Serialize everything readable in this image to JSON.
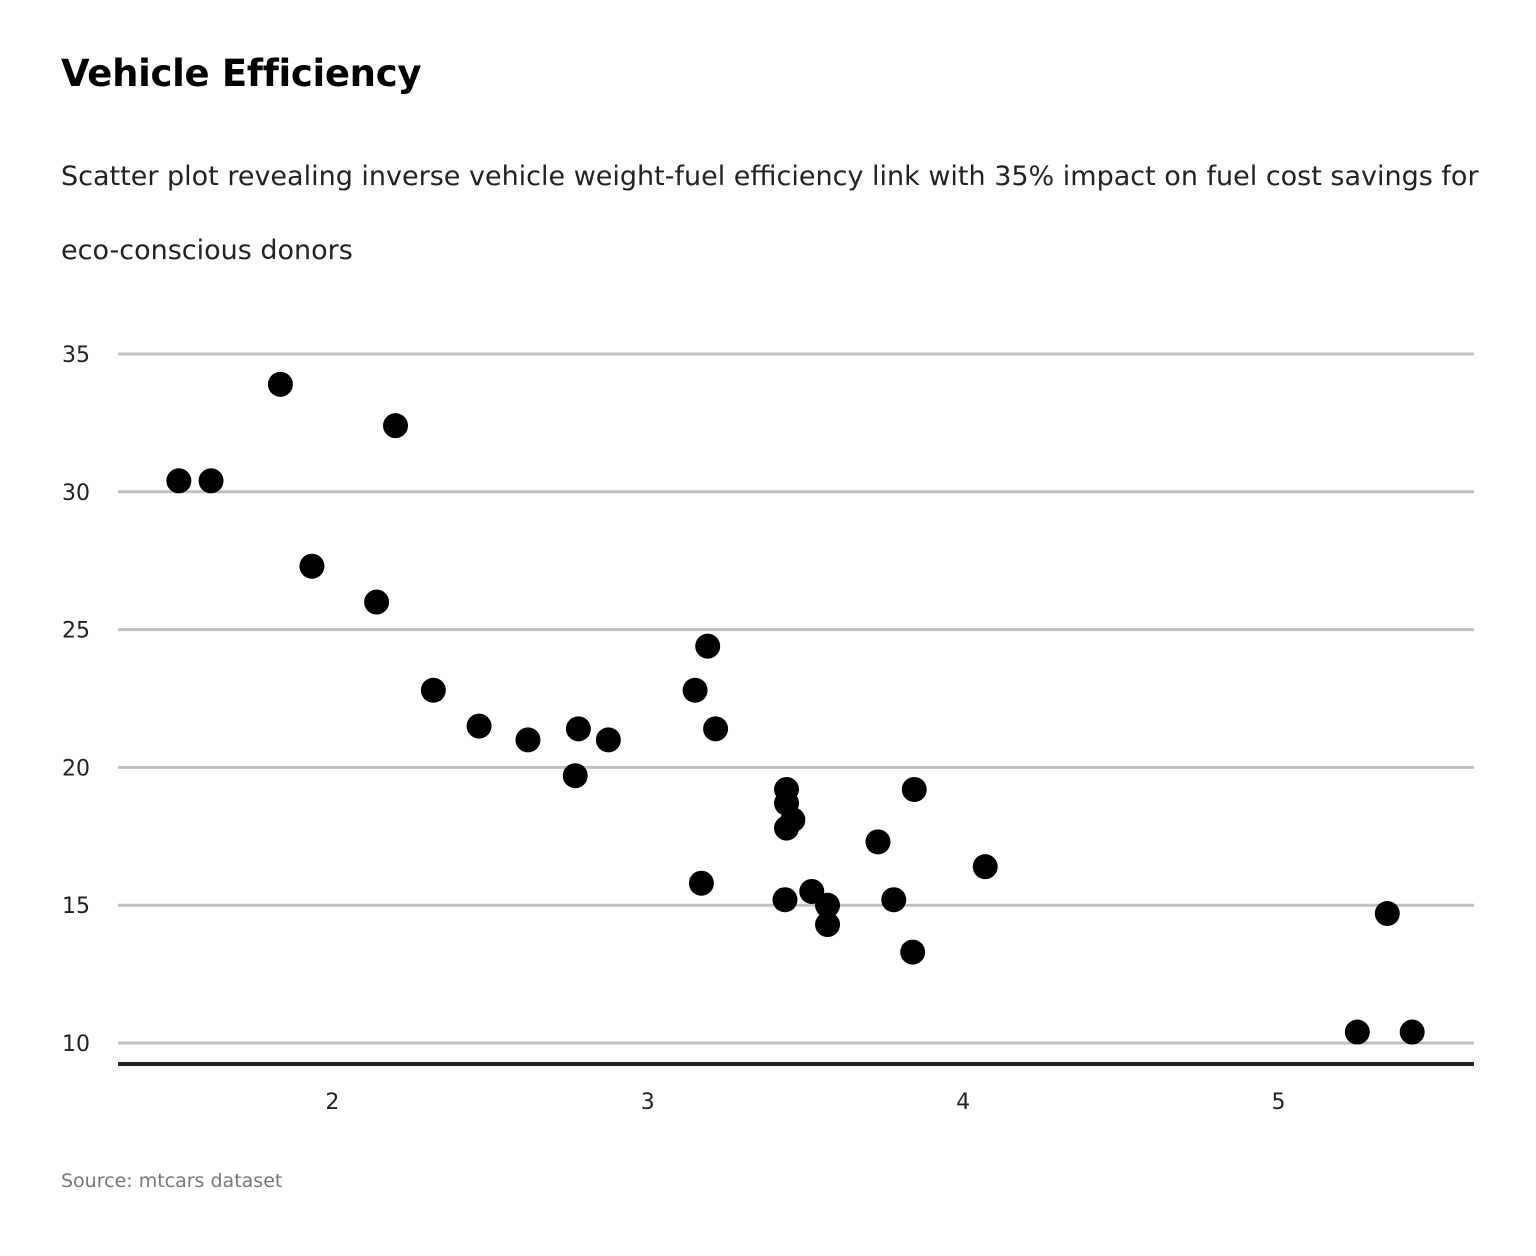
{
  "chart_data": {
    "type": "scatter",
    "title": "Vehicle Efficiency",
    "subtitle": "Scatter plot revealing inverse vehicle weight-fuel efficiency link with 35% impact on fuel cost savings for eco-conscious donors",
    "source": "Source: mtcars dataset",
    "xlabel": "",
    "ylabel": "",
    "xlim": [
      1.32,
      5.62
    ],
    "ylim": [
      9.24,
      35
    ],
    "xticks": [
      2,
      3,
      4,
      5
    ],
    "yticks": [
      10,
      15,
      20,
      25,
      30,
      35
    ],
    "grid": "horizontal",
    "colors": {
      "point": "#000000",
      "grid": "#c0c0c0",
      "baseline": "#222222"
    },
    "points": [
      {
        "x": 2.62,
        "y": 21.0
      },
      {
        "x": 2.875,
        "y": 21.0
      },
      {
        "x": 2.32,
        "y": 22.8
      },
      {
        "x": 3.215,
        "y": 21.4
      },
      {
        "x": 3.44,
        "y": 18.7
      },
      {
        "x": 3.46,
        "y": 18.1
      },
      {
        "x": 3.57,
        "y": 14.3
      },
      {
        "x": 3.19,
        "y": 24.4
      },
      {
        "x": 3.15,
        "y": 22.8
      },
      {
        "x": 3.44,
        "y": 19.2
      },
      {
        "x": 3.44,
        "y": 17.8
      },
      {
        "x": 4.07,
        "y": 16.4
      },
      {
        "x": 3.73,
        "y": 17.3
      },
      {
        "x": 3.78,
        "y": 15.2
      },
      {
        "x": 5.25,
        "y": 10.4
      },
      {
        "x": 5.424,
        "y": 10.4
      },
      {
        "x": 5.345,
        "y": 14.7
      },
      {
        "x": 2.2,
        "y": 32.4
      },
      {
        "x": 1.615,
        "y": 30.4
      },
      {
        "x": 1.835,
        "y": 33.9
      },
      {
        "x": 2.465,
        "y": 21.5
      },
      {
        "x": 3.52,
        "y": 15.5
      },
      {
        "x": 3.435,
        "y": 15.2
      },
      {
        "x": 3.84,
        "y": 13.3
      },
      {
        "x": 3.845,
        "y": 19.2
      },
      {
        "x": 1.935,
        "y": 27.3
      },
      {
        "x": 2.14,
        "y": 26.0
      },
      {
        "x": 1.513,
        "y": 30.4
      },
      {
        "x": 3.17,
        "y": 15.8
      },
      {
        "x": 2.77,
        "y": 19.7
      },
      {
        "x": 3.57,
        "y": 15.0
      },
      {
        "x": 2.78,
        "y": 21.4
      }
    ]
  }
}
